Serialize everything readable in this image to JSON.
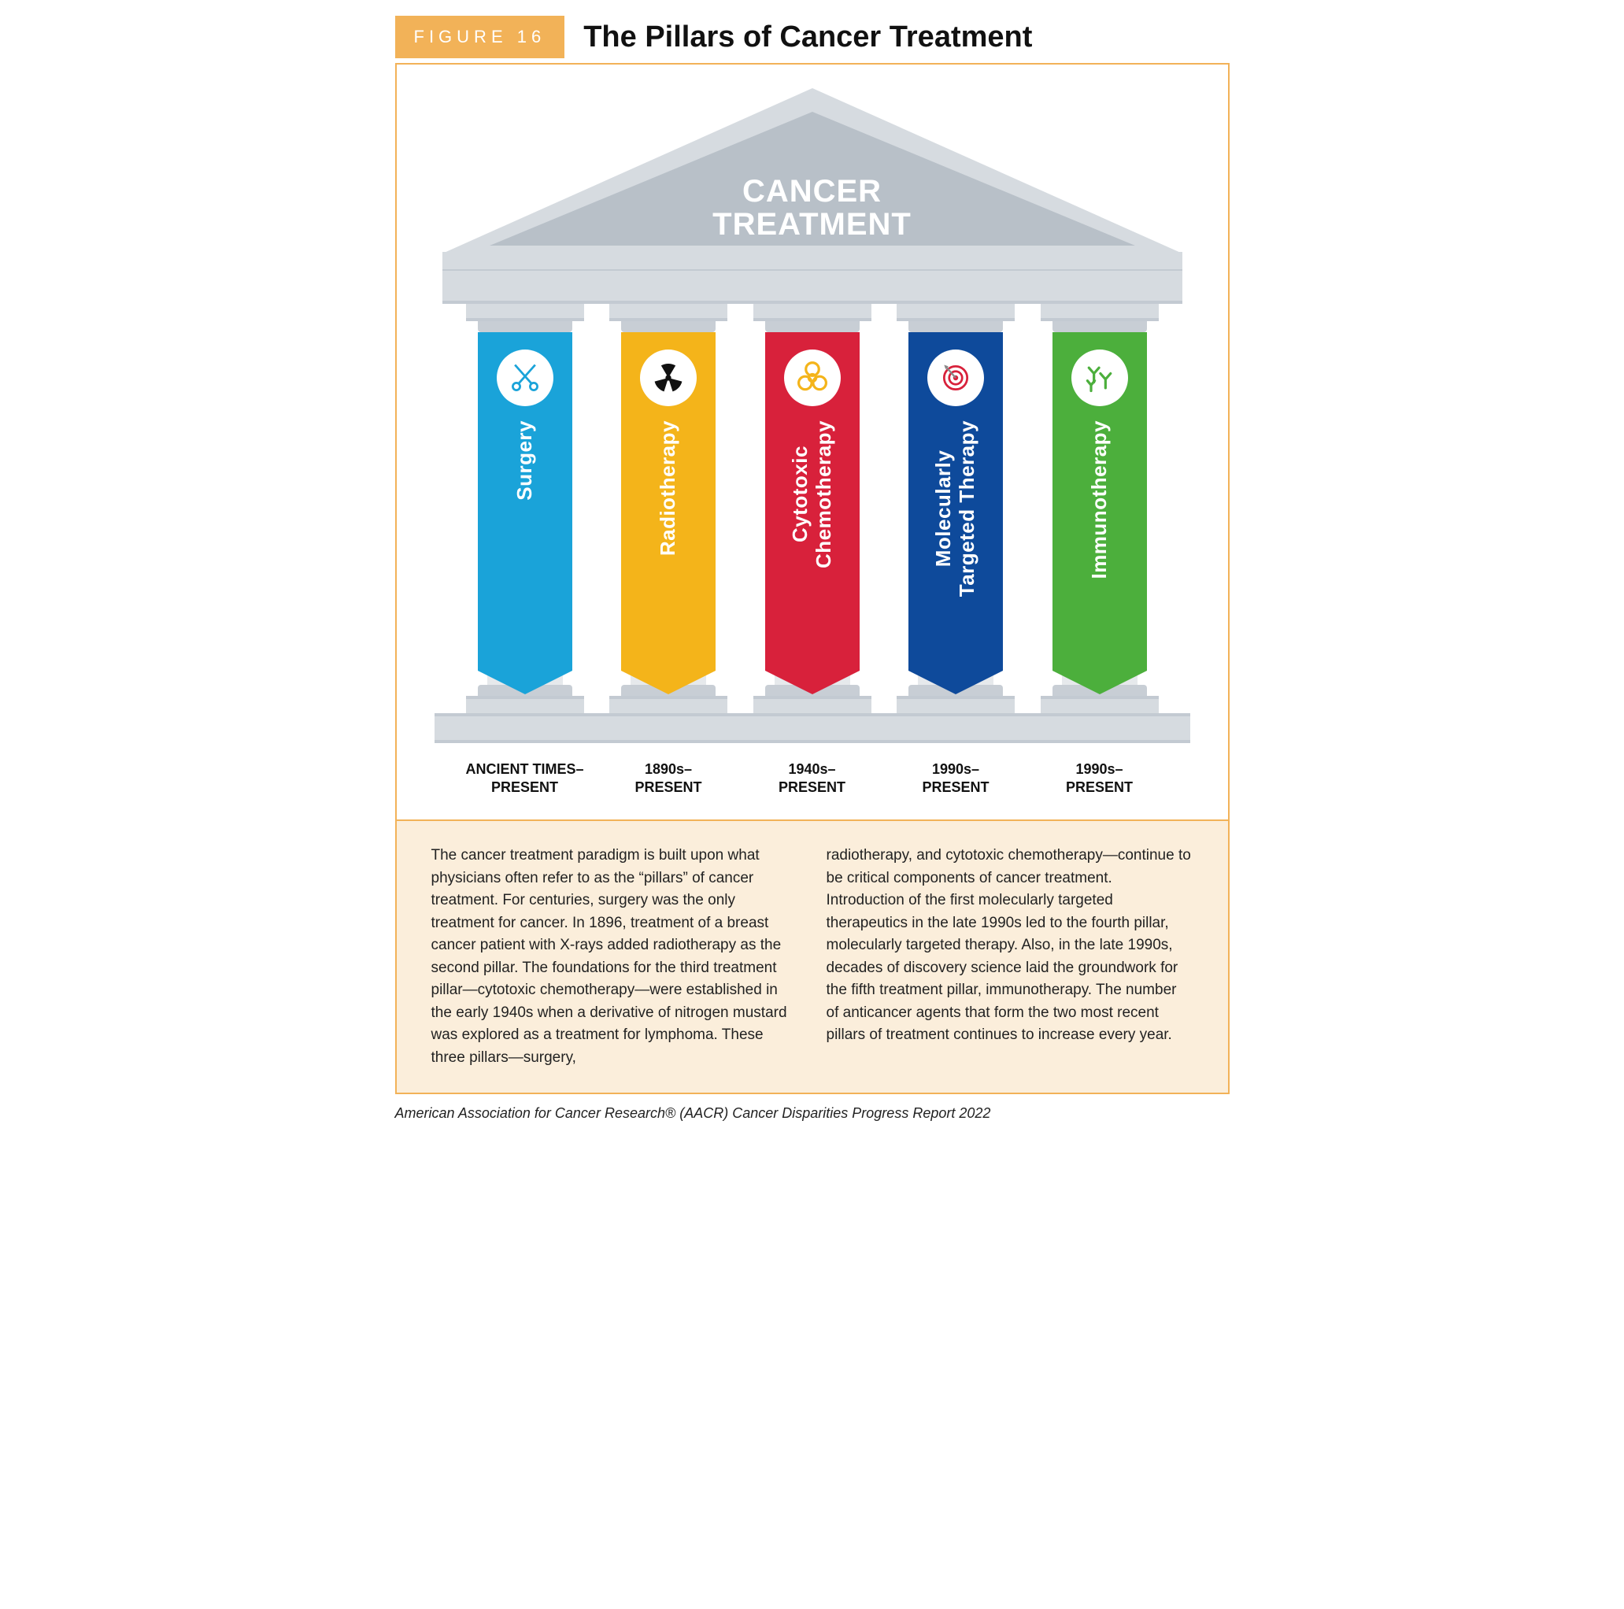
{
  "figure_tag": "FIGURE 16",
  "figure_title": "The Pillars of Cancer Treatment",
  "roof_label_line1": "CANCER",
  "roof_label_line2": "TREATMENT",
  "colors": {
    "accent": "#f2b258",
    "stone_light": "#e6e9ec",
    "stone_mid": "#d6dbe0",
    "stone_dark": "#c3cad2",
    "roof_fill": "#b8c0c8",
    "roof_edge": "#d6dbe0",
    "caption_bg": "#fbeedb"
  },
  "pillars": [
    {
      "name": "Surgery",
      "banner_color": "#1aa3d9",
      "icon": "scissors",
      "icon_color": "#1aa3d9",
      "timeline": "ANCIENT TIMES–\nPRESENT"
    },
    {
      "name": "Radiotherapy",
      "banner_color": "#f4b41a",
      "icon": "radiation",
      "icon_color": "#111111",
      "timeline": "1890s–\nPRESENT"
    },
    {
      "name": "Cytotoxic\nChemotherapy",
      "banner_color": "#d8213b",
      "icon": "biohazard",
      "icon_color": "#f4b41a",
      "timeline": "1940s–\nPRESENT"
    },
    {
      "name": "Molecularly\nTargeted Therapy",
      "banner_color": "#0e4a9b",
      "icon": "target",
      "icon_color": "#d8213b",
      "timeline": "1990s–\nPRESENT"
    },
    {
      "name": "Immunotherapy",
      "banner_color": "#4caf3c",
      "icon": "antibody",
      "icon_color": "#4caf3c",
      "timeline": "1990s–\nPRESENT"
    }
  ],
  "caption": {
    "col1": "The cancer treatment paradigm is built upon what physicians often refer to as the “pillars” of cancer treatment. For centuries, surgery was the only treatment for cancer. In 1896, treatment of a breast cancer patient with X-rays added radiotherapy as the second pillar. The foundations for the third treatment pillar—cytotoxic chemotherapy—were established in the early 1940s when a derivative of nitrogen mustard was explored as a treatment for lymphoma. These three pillars—surgery,",
    "col2": "radiotherapy, and cytotoxic chemotherapy—continue to be critical components of cancer treatment. Introduction of the first molecularly targeted therapeutics in the late 1990s led to the fourth pillar, molecularly targeted therapy. Also, in the late 1990s, decades of discovery science laid the groundwork for the fifth treatment pillar, immunotherapy. The number of anticancer agents that form the two most recent pillars of treatment continues to increase every year."
  },
  "source": "American Association for Cancer Research® (AACR) Cancer Disparities Progress Report 2022"
}
